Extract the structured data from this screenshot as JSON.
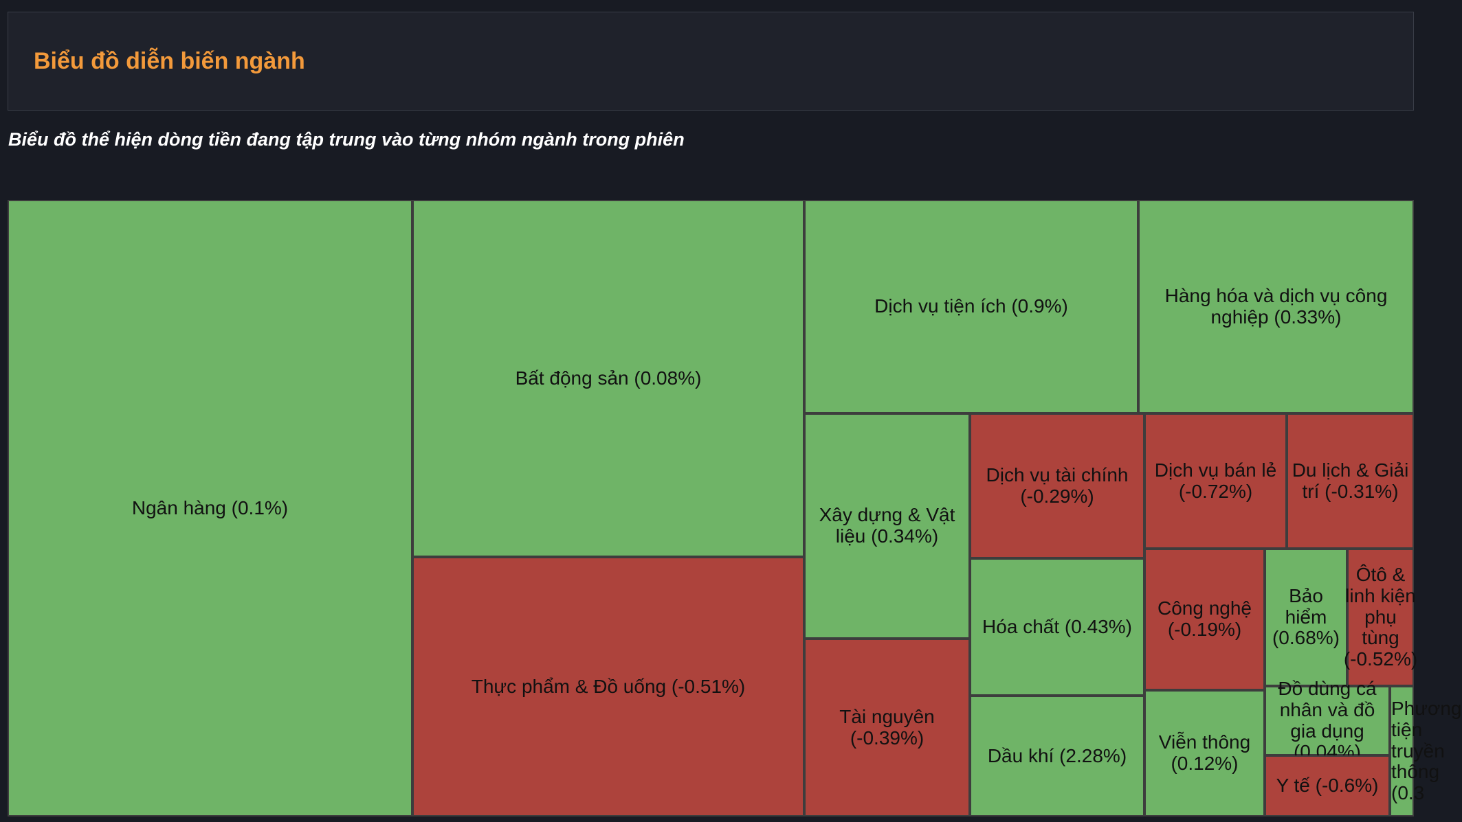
{
  "header": {
    "title": "Biểu đồ diễn biến ngành"
  },
  "subtitle": "Biểu đồ thể hiện dòng tiền đang tập trung vào từng nhóm ngành trong phiên",
  "colors": {
    "up": "#6fb467",
    "down": "#ad433c",
    "border": "#3d3d3d",
    "accent": "#f39a3b"
  },
  "chart_data": {
    "type": "treemap",
    "items": [
      {
        "label": "Ngân hàng (0.1%)",
        "name": "Ngân hàng",
        "change": 0.1
      },
      {
        "label": "Bất động sản (0.08%)",
        "name": "Bất động sản",
        "change": 0.08
      },
      {
        "label": "Thực phẩm & Đồ uống (-0.51%)",
        "name": "Thực phẩm & Đồ uống",
        "change": -0.51
      },
      {
        "label": "Dịch vụ tiện ích (0.9%)",
        "name": "Dịch vụ tiện ích",
        "change": 0.9
      },
      {
        "label": "Hàng hóa và dịch vụ công nghiệp (0.33%)",
        "name": "Hàng hóa và dịch vụ công nghiệp",
        "change": 0.33
      },
      {
        "label": "Xây dựng & Vật liệu (0.34%)",
        "name": "Xây dựng & Vật liệu",
        "change": 0.34
      },
      {
        "label": "Tài nguyên (-0.39%)",
        "name": "Tài nguyên",
        "change": -0.39
      },
      {
        "label": "Dịch vụ tài chính (-0.29%)",
        "name": "Dịch vụ tài chính",
        "change": -0.29
      },
      {
        "label": "Hóa chất (0.43%)",
        "name": "Hóa chất",
        "change": 0.43
      },
      {
        "label": "Dầu khí (2.28%)",
        "name": "Dầu khí",
        "change": 2.28
      },
      {
        "label": "Dịch vụ bán lẻ (-0.72%)",
        "name": "Dịch vụ bán lẻ",
        "change": -0.72
      },
      {
        "label": "Du lịch & Giải trí (-0.31%)",
        "name": "Du lịch & Giải trí",
        "change": -0.31
      },
      {
        "label": "Công nghệ (-0.19%)",
        "name": "Công nghệ",
        "change": -0.19
      },
      {
        "label": "Viễn thông (0.12%)",
        "name": "Viễn thông",
        "change": 0.12
      },
      {
        "label": "Bảo hiểm (0.68%)",
        "name": "Bảo hiểm",
        "change": 0.68
      },
      {
        "label": "Ôtô & linh kiện phụ tùng (-0.52%)",
        "name": "Ôtô & linh kiện phụ tùng",
        "change": -0.52
      },
      {
        "label": "Đồ dùng cá nhân và đồ gia dụng (0.04%)",
        "name": "Đồ dùng cá nhân và đồ gia dụng",
        "change": 0.04
      },
      {
        "label": "Y tế (-0.6%)",
        "name": "Y tế",
        "change": -0.6
      },
      {
        "label": "Phương tiện truyền thông (0.3",
        "name": "Phương tiện truyền thông",
        "change": 0.3
      }
    ]
  }
}
